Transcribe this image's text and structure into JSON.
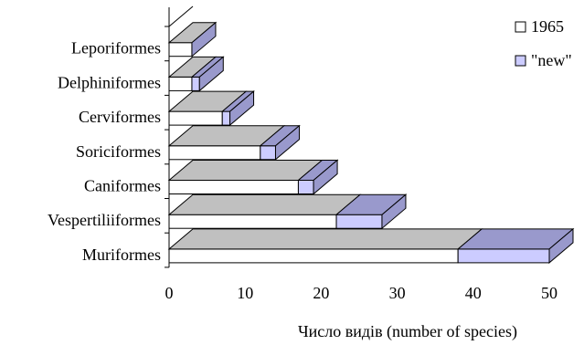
{
  "chart_data": {
    "type": "bar",
    "orientation": "horizontal",
    "stacked": true,
    "style": "3d",
    "categories": [
      "Leporiformes",
      "Delphiniformes",
      "Cerviformes",
      "Soriciformes",
      "Caniformes",
      "Vespertiliiformes",
      "Muriformes"
    ],
    "series": [
      {
        "name": "1965",
        "values": [
          3,
          3,
          7,
          12,
          17,
          22,
          38
        ],
        "color": "#ffffff"
      },
      {
        "name": "\"new\"",
        "values": [
          0,
          1,
          1,
          2,
          2,
          6,
          12
        ],
        "color": "#ccccff"
      }
    ],
    "xlabel": "Число видів (number of species)",
    "xlim": [
      0,
      50
    ],
    "xticks": [
      0,
      10,
      20,
      30,
      40,
      50
    ],
    "grid": false,
    "legend": "top-right",
    "colors": {
      "top_face": "#c0c0c0",
      "side_face": "#9999cc",
      "outline": "#000000"
    }
  }
}
